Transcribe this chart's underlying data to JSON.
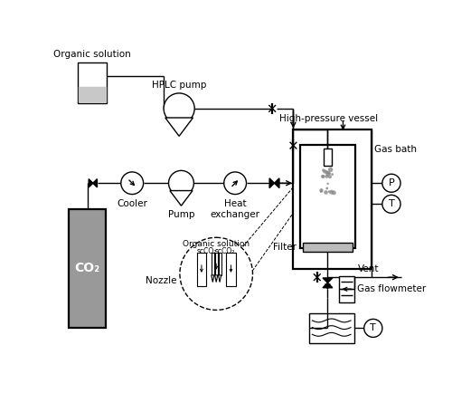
{
  "bg_color": "#ffffff",
  "line_color": "#000000",
  "labels": {
    "organic_solution": "Organic solution",
    "hplc_pump": "HPLC pump",
    "high_pressure_vessel": "High-pressure vessel",
    "gas_bath": "Gas bath",
    "cooler": "Cooler",
    "pump": "Pump",
    "heat_exchanger": "Heat\nexchanger",
    "co2": "CO₂",
    "filter": "Filter",
    "vent": "Vent",
    "gas_flowmeter": "Gas flowmeter",
    "nozzle": "Nozzle",
    "organic_solution_inset": "Organic solution",
    "scco2_left": "scCO₂",
    "scco2_right": "scCO₂",
    "P": "P",
    "T_vessel": "T",
    "T_bottom": "T"
  }
}
